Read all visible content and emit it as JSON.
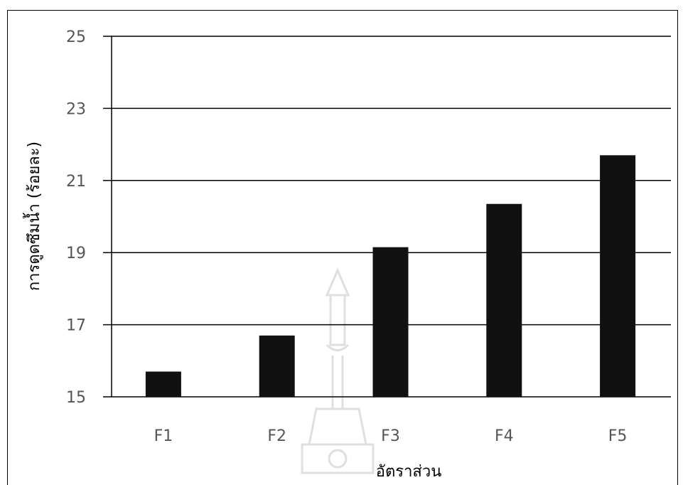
{
  "chart_data": {
    "type": "bar",
    "categories": [
      "F1",
      "F2",
      "F3",
      "F4",
      "F5"
    ],
    "values": [
      15.7,
      16.7,
      19.15,
      20.35,
      21.7
    ],
    "xlabel": "อัตราส่วน",
    "ylabel": "การดูดซึมน้ำ (ร้อยละ)",
    "ylim": [
      15,
      25
    ],
    "yticks": [
      15,
      17,
      19,
      21,
      23,
      25
    ],
    "grid": true,
    "bar_color": "#111111"
  }
}
